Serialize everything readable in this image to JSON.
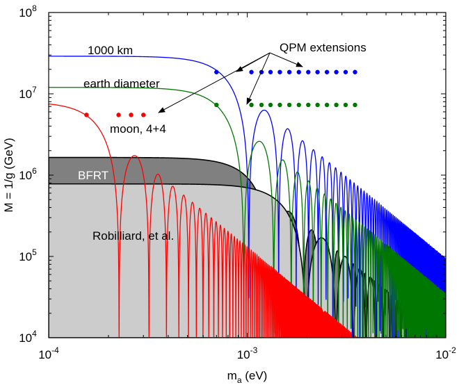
{
  "chart_data": {
    "type": "line",
    "xscale": "log",
    "yscale": "log",
    "xlim": [
      0.0001,
      0.01
    ],
    "ylim": [
      10000,
      100000000
    ],
    "xlabel": {
      "main": "m",
      "sub": "a",
      "rest": " (eV)"
    },
    "ylabel": "M = 1/g (GeV)",
    "x_ticks": [
      {
        "value": 0.0001,
        "base": "10",
        "exp": "-4"
      },
      {
        "value": 0.001,
        "base": "10",
        "exp": "-3"
      },
      {
        "value": 0.01,
        "base": "10",
        "exp": "-2"
      }
    ],
    "y_ticks": [
      {
        "value": 10000,
        "base": "10",
        "exp": "4"
      },
      {
        "value": 100000,
        "base": "10",
        "exp": "5"
      },
      {
        "value": 1000000,
        "base": "10",
        "exp": "6"
      },
      {
        "value": 10000000,
        "base": "10",
        "exp": "7"
      },
      {
        "value": 100000000,
        "base": "10",
        "exp": "8"
      }
    ],
    "regions": [
      {
        "name": "BFRT",
        "color": "#808080",
        "plateau": 1650000,
        "cutoff": 0.00095
      },
      {
        "name": "Robilliard, et al.",
        "color": "#cccccc",
        "plateau": 780000,
        "cutoff": 0.0014
      }
    ],
    "series": [
      {
        "name": "1000 km",
        "color": "#0000ff",
        "plateau": 29000000,
        "cutoff": 0.00072,
        "qpm_points": [
          0.0007,
          0.00105,
          0.00118,
          0.00131,
          0.00146,
          0.00163,
          0.00182,
          0.00203,
          0.00226,
          0.00252,
          0.00281,
          0.00313,
          0.00349
        ],
        "qpm_value": 18500000
      },
      {
        "name": "earth diameter",
        "color": "#007700",
        "plateau": 12000000,
        "cutoff": 0.00068,
        "qpm_points": [
          0.0007,
          0.00105,
          0.00118,
          0.00131,
          0.00146,
          0.00163,
          0.00182,
          0.00203,
          0.00226,
          0.00252,
          0.00281,
          0.00313,
          0.00349
        ],
        "qpm_value": 7300000
      },
      {
        "name": "moon, 4+4",
        "color": "#ff0000",
        "plateau": 8000000,
        "cutoff": 0.00016,
        "qpm_points": [
          0.000155,
          0.000225,
          0.00026,
          0.0003
        ],
        "qpm_value": 5500000
      }
    ],
    "annotations": [
      {
        "text": "QPM extensions"
      }
    ]
  }
}
